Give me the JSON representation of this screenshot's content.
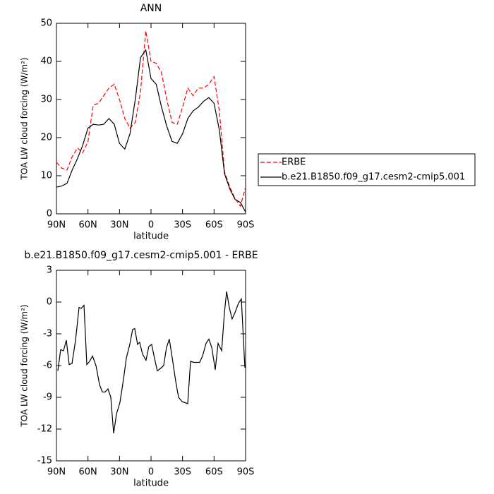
{
  "chart_data": [
    {
      "type": "line",
      "title": "ANN",
      "xlabel": "latitude",
      "ylabel": "TOA LW cloud forcing (W/m²)",
      "x": [
        90,
        85,
        80,
        75,
        70,
        65,
        60,
        55,
        50,
        45,
        40,
        35,
        30,
        25,
        20,
        15,
        10,
        5,
        0,
        -5,
        -10,
        -15,
        -20,
        -25,
        -30,
        -35,
        -40,
        -45,
        -50,
        -55,
        -60,
        -65,
        -70,
        -75,
        -80,
        -85,
        -90
      ],
      "series": [
        {
          "name": "ERBE",
          "color": "#ff0000",
          "linestyle": "dashed",
          "values": [
            13.5,
            12,
            11.5,
            15,
            17.3,
            16,
            19,
            28.5,
            29,
            31,
            33,
            34,
            30,
            25,
            22.5,
            24,
            32,
            48,
            40,
            39.5,
            37,
            30,
            24,
            23.5,
            28,
            33,
            31,
            33,
            33,
            34,
            36,
            27,
            11,
            7,
            4,
            2,
            7
          ]
        },
        {
          "name": "b.e21.B1850.f09_g17.cesm2-cmip5.001",
          "color": "#000000",
          "linestyle": "solid",
          "values": [
            7,
            7.3,
            8,
            11.5,
            14.5,
            18,
            22.5,
            23.5,
            23.3,
            23.5,
            25,
            23.5,
            18.5,
            17,
            21,
            30,
            41,
            43,
            35.5,
            34,
            28,
            23,
            19,
            18.5,
            21,
            25,
            27,
            28,
            29.5,
            30.5,
            29,
            22,
            10.5,
            6.5,
            3.8,
            3,
            0.5
          ]
        }
      ],
      "xlim": [
        90,
        -90
      ],
      "xticks": [
        {
          "value": 90,
          "label": "90N"
        },
        {
          "value": 60,
          "label": "60N"
        },
        {
          "value": 30,
          "label": "30N"
        },
        0,
        {
          "value": -30,
          "label": "30S"
        },
        {
          "value": -60,
          "label": "60S"
        },
        {
          "value": -90,
          "label": "90S"
        }
      ],
      "ylim": [
        0,
        50
      ],
      "yticks": [
        0,
        10,
        20,
        30,
        40,
        50
      ],
      "legend": "right"
    },
    {
      "type": "line",
      "title": "b.e21.B1850.f09_g17.cesm2-cmip5.001 - ERBE",
      "xlabel": "latitude",
      "ylabel": "TOA LW cloud forcing (W/m²)",
      "x": [
        88.7,
        86.0,
        83.3,
        80.6,
        77.9,
        75.2,
        71.9,
        68.5,
        66.5,
        63.8,
        61.1,
        58.4,
        55.7,
        52.4,
        49.0,
        46.3,
        43.7,
        41.0,
        38.3,
        35.6,
        32.9,
        29.6,
        26.2,
        23.5,
        20.2,
        17.5,
        15.5,
        12.8,
        10.8,
        8.1,
        4.8,
        2.1,
        -0.6,
        -3.3,
        -6.0,
        -8.7,
        -12.0,
        -14.7,
        -17.4,
        -20.1,
        -23.5,
        -26.2,
        -29.5,
        -34.9,
        -37.6,
        -41.0,
        -46.3,
        -49.0,
        -52.4,
        -55.1,
        -57.8,
        -61.1,
        -63.8,
        -67.2,
        -69.8,
        -71.9,
        -74.5,
        -77.2,
        -79.9,
        -83.3,
        -86.0,
        -89.3
      ],
      "series": [
        {
          "color": "#000000",
          "linestyle": "solid",
          "values": [
            -6.5,
            -4.5,
            -4.6,
            -3.6,
            -5.9,
            -5.8,
            -3.7,
            -0.5,
            -0.6,
            -0.3,
            -5.9,
            -5.6,
            -5.1,
            -6.0,
            -7.8,
            -8.5,
            -8.5,
            -8.2,
            -9.0,
            -12.4,
            -10.6,
            -9.5,
            -7.3,
            -5.3,
            -4.0,
            -2.6,
            -2.5,
            -4.0,
            -3.8,
            -4.9,
            -5.5,
            -4.2,
            -4.0,
            -5.3,
            -6.5,
            -6.3,
            -6.0,
            -4.3,
            -3.5,
            -5.2,
            -7.5,
            -9.0,
            -9.4,
            -9.6,
            -5.6,
            -5.7,
            -5.7,
            -5.1,
            -3.9,
            -3.5,
            -4.3,
            -6.4,
            -3.9,
            -4.6,
            -1.1,
            1.0,
            -0.5,
            -1.6,
            -1.0,
            -0.1,
            0.3,
            -6.2
          ]
        }
      ],
      "xlim": [
        90,
        -90
      ],
      "xticks": [
        {
          "value": 90,
          "label": "90N"
        },
        {
          "value": 60,
          "label": "60N"
        },
        {
          "value": 30,
          "label": "30N"
        },
        0,
        {
          "value": -30,
          "label": "30S"
        },
        {
          "value": -60,
          "label": "60S"
        },
        {
          "value": -90,
          "label": "90S"
        }
      ],
      "ylim": [
        -15,
        3
      ],
      "yticks": [
        -15,
        -12,
        -9,
        -6,
        -3,
        0,
        3
      ]
    }
  ]
}
